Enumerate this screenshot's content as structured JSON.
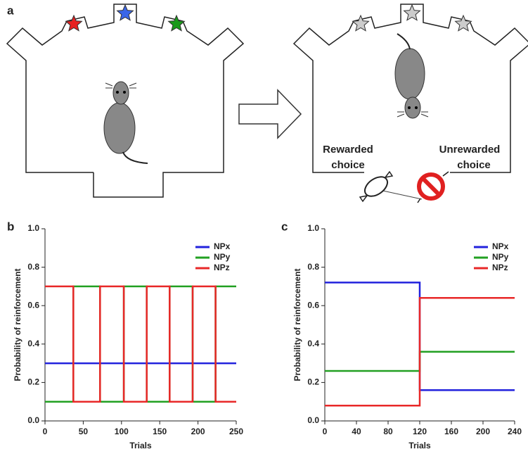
{
  "panel_labels": [
    "a",
    "b",
    "c"
  ],
  "diagram": {
    "rewarded_label": [
      "Rewarded",
      "choice"
    ],
    "unrewarded_label": [
      "Unrewarded",
      "choice"
    ]
  },
  "chart_data": [
    {
      "type": "line",
      "xlabel": "Trials",
      "ylabel": "Probability of reinforcement",
      "x": [
        0,
        37,
        37,
        72,
        72,
        103,
        103,
        133,
        133,
        163,
        163,
        193,
        193,
        223,
        223,
        250
      ],
      "series": [
        {
          "name": "NPx",
          "color": "#2222dd",
          "values": [
            0.3,
            0.3,
            0.3,
            0.3,
            0.3,
            0.3,
            0.3,
            0.3,
            0.3,
            0.3,
            0.3,
            0.3,
            0.3,
            0.3,
            0.3,
            0.3
          ]
        },
        {
          "name": "NPy",
          "color": "#22a022",
          "values": [
            0.1,
            0.1,
            0.7,
            0.7,
            0.1,
            0.1,
            0.7,
            0.7,
            0.1,
            0.1,
            0.7,
            0.7,
            0.1,
            0.1,
            0.7,
            0.7
          ]
        },
        {
          "name": "NPz",
          "color": "#e82828",
          "values": [
            0.7,
            0.7,
            0.1,
            0.1,
            0.7,
            0.7,
            0.1,
            0.1,
            0.7,
            0.7,
            0.1,
            0.1,
            0.7,
            0.7,
            0.1,
            0.1
          ]
        }
      ],
      "xlim": [
        0,
        250
      ],
      "xticks": [
        0,
        50,
        100,
        150,
        200,
        250
      ],
      "ylim": [
        0,
        1
      ],
      "yticks": [
        {
          "value": 0,
          "label": "0.0"
        },
        0.2,
        0.4,
        0.6,
        0.8,
        {
          "value": 1,
          "label": "1.0"
        }
      ],
      "legend": "upper right"
    },
    {
      "type": "line",
      "xlabel": "Trials",
      "ylabel": "Probability of reinforcement",
      "x": [
        0,
        120,
        120,
        240
      ],
      "series": [
        {
          "name": "NPx",
          "color": "#2222dd",
          "values": [
            0.72,
            0.72,
            0.16,
            0.16
          ]
        },
        {
          "name": "NPy",
          "color": "#22a022",
          "values": [
            0.26,
            0.26,
            0.36,
            0.36
          ]
        },
        {
          "name": "NPz",
          "color": "#e82828",
          "values": [
            0.08,
            0.08,
            0.64,
            0.64
          ]
        }
      ],
      "xlim": [
        0,
        240
      ],
      "xticks": [
        0,
        40,
        80,
        120,
        160,
        200,
        240
      ],
      "ylim": [
        0,
        1
      ],
      "yticks": [
        {
          "value": 0,
          "label": "0.0"
        },
        0.2,
        0.4,
        0.6,
        0.8,
        {
          "value": 1,
          "label": "1.0"
        }
      ],
      "legend": "upper right"
    }
  ]
}
